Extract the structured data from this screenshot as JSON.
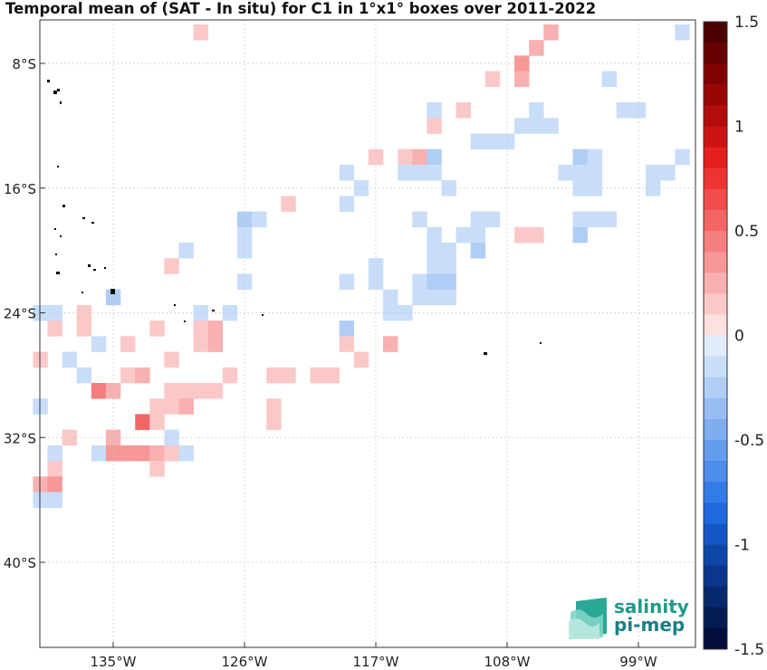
{
  "title": "Temporal mean of (SAT - In situ) for C1 in 1°x1° boxes over 2011-2022",
  "logo": {
    "line1": "salinity",
    "line2": "pi-mep"
  },
  "axes": {
    "lon_range": [
      -140,
      -94
    ],
    "lat_range": [
      -46,
      -4
    ],
    "x_ticks": [
      {
        "value": -135,
        "label": "135°W"
      },
      {
        "value": -126,
        "label": "126°W"
      },
      {
        "value": -117,
        "label": "117°W"
      },
      {
        "value": -108,
        "label": "108°W"
      },
      {
        "value": -99,
        "label": "99°W"
      }
    ],
    "y_ticks": [
      {
        "value": -8,
        "label": "8°S"
      },
      {
        "value": -16,
        "label": "16°S"
      },
      {
        "value": -24,
        "label": "24°S"
      },
      {
        "value": -32,
        "label": "32°S"
      },
      {
        "value": -40,
        "label": "40°S"
      }
    ],
    "grid": true
  },
  "colorbar": {
    "range": [
      -1.5,
      1.5
    ],
    "tick_labels": [
      {
        "value": 1.5,
        "label": "1.5"
      },
      {
        "value": 1,
        "label": "1"
      },
      {
        "value": 0.5,
        "label": "0.5"
      },
      {
        "value": 0,
        "label": "0"
      },
      {
        "value": -0.5,
        "label": "-0.5"
      },
      {
        "value": -1,
        "label": "-1"
      },
      {
        "value": -1.5,
        "label": "-1.5"
      }
    ]
  },
  "chart_data": {
    "type": "heatmap",
    "cell_size_deg": 1,
    "cells": [
      {
        "lon": -129,
        "lat": -6,
        "v": 0.1
      },
      {
        "lon": -105,
        "lat": -6,
        "v": 0.2
      },
      {
        "lon": -96,
        "lat": -6,
        "v": -0.1
      },
      {
        "lon": -106,
        "lat": -7,
        "v": 0.3
      },
      {
        "lon": -107,
        "lat": -8,
        "v": 0.35
      },
      {
        "lon": -107,
        "lat": -9,
        "v": 0.3
      },
      {
        "lon": -109,
        "lat": -9,
        "v": 0.15
      },
      {
        "lon": -101,
        "lat": -9,
        "v": -0.1
      },
      {
        "lon": -113,
        "lat": -11,
        "v": -0.1
      },
      {
        "lon": -111,
        "lat": -11,
        "v": 0.15
      },
      {
        "lon": -106,
        "lat": -11,
        "v": -0.1
      },
      {
        "lon": -100,
        "lat": -11,
        "v": -0.1
      },
      {
        "lon": -99,
        "lat": -11,
        "v": -0.1
      },
      {
        "lon": -113,
        "lat": -12,
        "v": 0.1
      },
      {
        "lon": -107,
        "lat": -12,
        "v": -0.1
      },
      {
        "lon": -106,
        "lat": -12,
        "v": -0.1
      },
      {
        "lon": -105,
        "lat": -12,
        "v": -0.1
      },
      {
        "lon": -110,
        "lat": -13,
        "v": -0.15
      },
      {
        "lon": -109,
        "lat": -13,
        "v": -0.1
      },
      {
        "lon": -108,
        "lat": -13,
        "v": -0.1
      },
      {
        "lon": -117,
        "lat": -14,
        "v": 0.15
      },
      {
        "lon": -115,
        "lat": -14,
        "v": 0.1
      },
      {
        "lon": -114,
        "lat": -14,
        "v": 0.25
      },
      {
        "lon": -113,
        "lat": -14,
        "v": -0.25
      },
      {
        "lon": -103,
        "lat": -14,
        "v": -0.3
      },
      {
        "lon": -102,
        "lat": -14,
        "v": -0.1
      },
      {
        "lon": -96,
        "lat": -14,
        "v": -0.1
      },
      {
        "lon": -119,
        "lat": -15,
        "v": -0.1
      },
      {
        "lon": -115,
        "lat": -15,
        "v": -0.1
      },
      {
        "lon": -114,
        "lat": -15,
        "v": -0.1
      },
      {
        "lon": -113,
        "lat": -15,
        "v": -0.1
      },
      {
        "lon": -104,
        "lat": -15,
        "v": -0.1
      },
      {
        "lon": -103,
        "lat": -15,
        "v": -0.15
      },
      {
        "lon": -102,
        "lat": -15,
        "v": -0.1
      },
      {
        "lon": -98,
        "lat": -15,
        "v": -0.1
      },
      {
        "lon": -97,
        "lat": -15,
        "v": -0.1
      },
      {
        "lon": -118,
        "lat": -16,
        "v": -0.1
      },
      {
        "lon": -112,
        "lat": -16,
        "v": -0.1
      },
      {
        "lon": -103,
        "lat": -16,
        "v": -0.1
      },
      {
        "lon": -102,
        "lat": -16,
        "v": -0.1
      },
      {
        "lon": -98,
        "lat": -16,
        "v": -0.1
      },
      {
        "lon": -123,
        "lat": -17,
        "v": 0.15
      },
      {
        "lon": -119,
        "lat": -17,
        "v": -0.1
      },
      {
        "lon": -126,
        "lat": -18,
        "v": -0.25
      },
      {
        "lon": -125,
        "lat": -18,
        "v": -0.1
      },
      {
        "lon": -114,
        "lat": -18,
        "v": -0.1
      },
      {
        "lon": -110,
        "lat": -18,
        "v": -0.15
      },
      {
        "lon": -109,
        "lat": -18,
        "v": -0.1
      },
      {
        "lon": -103,
        "lat": -18,
        "v": -0.1
      },
      {
        "lon": -102,
        "lat": -18,
        "v": -0.1
      },
      {
        "lon": -101,
        "lat": -18,
        "v": -0.1
      },
      {
        "lon": -126,
        "lat": -19,
        "v": -0.1
      },
      {
        "lon": -113,
        "lat": -19,
        "v": -0.1
      },
      {
        "lon": -111,
        "lat": -19,
        "v": -0.1
      },
      {
        "lon": -110,
        "lat": -19,
        "v": -0.1
      },
      {
        "lon": -107,
        "lat": -19,
        "v": 0.15
      },
      {
        "lon": -106,
        "lat": -19,
        "v": 0.15
      },
      {
        "lon": -103,
        "lat": -19,
        "v": -0.25
      },
      {
        "lon": -130,
        "lat": -20,
        "v": -0.1
      },
      {
        "lon": -126,
        "lat": -20,
        "v": -0.1
      },
      {
        "lon": -113,
        "lat": -20,
        "v": -0.1
      },
      {
        "lon": -112,
        "lat": -20,
        "v": -0.1
      },
      {
        "lon": -110,
        "lat": -20,
        "v": -0.2
      },
      {
        "lon": -131,
        "lat": -21,
        "v": 0.15
      },
      {
        "lon": -117,
        "lat": -21,
        "v": -0.1
      },
      {
        "lon": -113,
        "lat": -21,
        "v": -0.1
      },
      {
        "lon": -112,
        "lat": -21,
        "v": -0.15
      },
      {
        "lon": -126,
        "lat": -22,
        "v": -0.1
      },
      {
        "lon": -119,
        "lat": -22,
        "v": -0.1
      },
      {
        "lon": -117,
        "lat": -22,
        "v": -0.1
      },
      {
        "lon": -114,
        "lat": -22,
        "v": -0.1
      },
      {
        "lon": -113,
        "lat": -22,
        "v": -0.25
      },
      {
        "lon": -112,
        "lat": -22,
        "v": -0.25
      },
      {
        "lon": -135,
        "lat": -23,
        "v": -0.3
      },
      {
        "lon": -116,
        "lat": -23,
        "v": -0.1
      },
      {
        "lon": -114,
        "lat": -23,
        "v": -0.1
      },
      {
        "lon": -113,
        "lat": -23,
        "v": -0.1
      },
      {
        "lon": -112,
        "lat": -23,
        "v": -0.1
      },
      {
        "lon": -140,
        "lat": -24,
        "v": -0.1
      },
      {
        "lon": -139,
        "lat": -24,
        "v": -0.1
      },
      {
        "lon": -137,
        "lat": -24,
        "v": 0.15
      },
      {
        "lon": -129,
        "lat": -24,
        "v": -0.1
      },
      {
        "lon": -127,
        "lat": -24,
        "v": -0.1
      },
      {
        "lon": -116,
        "lat": -24,
        "v": -0.1
      },
      {
        "lon": -115,
        "lat": -24,
        "v": -0.1
      },
      {
        "lon": -139,
        "lat": -25,
        "v": 0.1
      },
      {
        "lon": -137,
        "lat": -25,
        "v": 0.15
      },
      {
        "lon": -132,
        "lat": -25,
        "v": 0.1
      },
      {
        "lon": -129,
        "lat": -25,
        "v": 0.15
      },
      {
        "lon": -128,
        "lat": -25,
        "v": 0.2
      },
      {
        "lon": -119,
        "lat": -25,
        "v": -0.25
      },
      {
        "lon": -128,
        "lat": -26,
        "v": 0.2
      },
      {
        "lon": -129,
        "lat": -26,
        "v": 0.1
      },
      {
        "lon": -136,
        "lat": -26,
        "v": -0.1
      },
      {
        "lon": -134,
        "lat": -26,
        "v": 0.1
      },
      {
        "lon": -119,
        "lat": -26,
        "v": 0.15
      },
      {
        "lon": -116,
        "lat": -26,
        "v": 0.3
      },
      {
        "lon": -140,
        "lat": -27,
        "v": 0.15
      },
      {
        "lon": -138,
        "lat": -27,
        "v": -0.1
      },
      {
        "lon": -131,
        "lat": -27,
        "v": 0.1
      },
      {
        "lon": -118,
        "lat": -27,
        "v": 0.1
      },
      {
        "lon": -137,
        "lat": -28,
        "v": -0.1
      },
      {
        "lon": -134,
        "lat": -28,
        "v": 0.15
      },
      {
        "lon": -133,
        "lat": -28,
        "v": 0.3
      },
      {
        "lon": -127,
        "lat": -28,
        "v": 0.15
      },
      {
        "lon": -124,
        "lat": -28,
        "v": 0.15
      },
      {
        "lon": -123,
        "lat": -28,
        "v": 0.15
      },
      {
        "lon": -121,
        "lat": -28,
        "v": 0.15
      },
      {
        "lon": -120,
        "lat": -28,
        "v": 0.15
      },
      {
        "lon": -136,
        "lat": -29,
        "v": 0.4
      },
      {
        "lon": -135,
        "lat": -29,
        "v": 0.3
      },
      {
        "lon": -131,
        "lat": -29,
        "v": 0.1
      },
      {
        "lon": -130,
        "lat": -29,
        "v": 0.1
      },
      {
        "lon": -129,
        "lat": -29,
        "v": 0.1
      },
      {
        "lon": -128,
        "lat": -29,
        "v": 0.1
      },
      {
        "lon": -140,
        "lat": -30,
        "v": -0.1
      },
      {
        "lon": -132,
        "lat": -30,
        "v": 0.15
      },
      {
        "lon": -131,
        "lat": -30,
        "v": 0.15
      },
      {
        "lon": -130,
        "lat": -30,
        "v": 0.3
      },
      {
        "lon": -124,
        "lat": -30,
        "v": 0.15
      },
      {
        "lon": -133,
        "lat": -31,
        "v": 0.5
      },
      {
        "lon": -132,
        "lat": -31,
        "v": 0.1
      },
      {
        "lon": -124,
        "lat": -31,
        "v": 0.15
      },
      {
        "lon": -138,
        "lat": -32,
        "v": 0.15
      },
      {
        "lon": -135,
        "lat": -32,
        "v": 0.25
      },
      {
        "lon": -131,
        "lat": -32,
        "v": -0.1
      },
      {
        "lon": -139,
        "lat": -33,
        "v": -0.1
      },
      {
        "lon": -136,
        "lat": -33,
        "v": -0.1
      },
      {
        "lon": -135,
        "lat": -33,
        "v": 0.35
      },
      {
        "lon": -134,
        "lat": -33,
        "v": 0.35
      },
      {
        "lon": -133,
        "lat": -33,
        "v": 0.35
      },
      {
        "lon": -132,
        "lat": -33,
        "v": 0.3
      },
      {
        "lon": -131,
        "lat": -33,
        "v": 0.1
      },
      {
        "lon": -130,
        "lat": -33,
        "v": -0.1
      },
      {
        "lon": -139,
        "lat": -34,
        "v": 0.15
      },
      {
        "lon": -132,
        "lat": -34,
        "v": 0.15
      },
      {
        "lon": -140,
        "lat": -35,
        "v": 0.3
      },
      {
        "lon": -139,
        "lat": -35,
        "v": 0.35
      },
      {
        "lon": -140,
        "lat": -36,
        "v": -0.1
      },
      {
        "lon": -139,
        "lat": -36,
        "v": -0.1
      }
    ]
  }
}
